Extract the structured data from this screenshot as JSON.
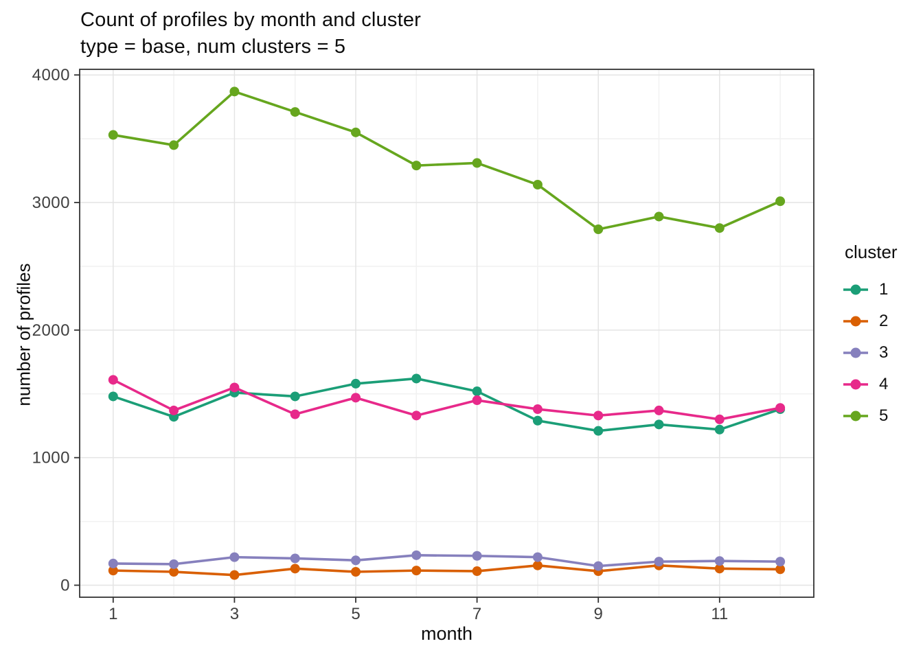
{
  "title": "Count of profiles by month and cluster",
  "subtitle": "type = base, num clusters = 5",
  "legend": {
    "title": "cluster"
  },
  "chart_data": {
    "type": "line",
    "title": "Count of profiles by month and cluster",
    "subtitle": "type = base, num clusters = 5",
    "xlabel": "month",
    "ylabel": "number of profiles",
    "x": [
      1,
      2,
      3,
      4,
      5,
      6,
      7,
      8,
      9,
      10,
      11,
      12
    ],
    "x_ticks": [
      1,
      3,
      5,
      7,
      9,
      11
    ],
    "x_minor_ticks": [
      2,
      4,
      6,
      8,
      10,
      12
    ],
    "y_ticks": [
      0,
      1000,
      2000,
      3000,
      4000
    ],
    "y_minor_ticks": [
      500,
      1500,
      2500,
      3500
    ],
    "ylim": [
      0,
      4000
    ],
    "grid": "major and minor, light grey on white panel, dark panel border",
    "legend_position": "right",
    "legend_title": "cluster",
    "series": [
      {
        "name": "1",
        "color": "#1B9E77",
        "values": [
          1480,
          1320,
          1510,
          1480,
          1580,
          1620,
          1520,
          1290,
          1210,
          1260,
          1220,
          1380
        ]
      },
      {
        "name": "2",
        "color": "#D95F02",
        "values": [
          115,
          105,
          80,
          130,
          105,
          115,
          110,
          155,
          110,
          155,
          130,
          125
        ]
      },
      {
        "name": "3",
        "color": "#8680BD",
        "values": [
          170,
          165,
          220,
          210,
          195,
          235,
          230,
          220,
          150,
          185,
          190,
          185
        ]
      },
      {
        "name": "4",
        "color": "#E7298A",
        "values": [
          1610,
          1370,
          1550,
          1340,
          1470,
          1330,
          1450,
          1380,
          1330,
          1370,
          1300,
          1390
        ]
      },
      {
        "name": "5",
        "color": "#66A61E",
        "values": [
          3530,
          3450,
          3870,
          3710,
          3550,
          3290,
          3310,
          3140,
          2790,
          2890,
          2800,
          3010
        ]
      }
    ]
  }
}
